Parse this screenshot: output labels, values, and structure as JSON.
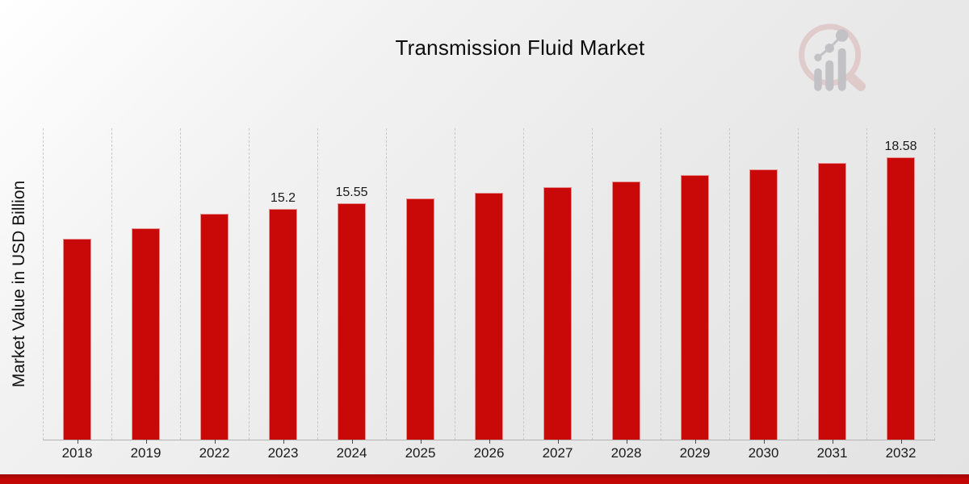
{
  "page": {
    "title": "Transmission Fluid Market"
  },
  "colors": {
    "bar": "#c90808",
    "footer_strip": "#c00606",
    "gridline": "#c9c9c9",
    "axis_line": "#b3b3b3",
    "text": "#1a1a1a",
    "watermark_ring": "#d8aeae",
    "watermark_gray": "#9d9da4"
  },
  "watermark": {
    "name": "magnifier-bar-chart-logo"
  },
  "chart_data": {
    "type": "bar",
    "title": "Transmission Fluid Market",
    "xlabel": "",
    "ylabel": "Market Value in USD Billion",
    "categories": [
      "2018",
      "2019",
      "2022",
      "2023",
      "2024",
      "2025",
      "2026",
      "2027",
      "2028",
      "2029",
      "2030",
      "2031",
      "2032"
    ],
    "values": [
      13.25,
      13.9,
      14.85,
      15.2,
      15.55,
      15.9,
      16.25,
      16.62,
      17.0,
      17.4,
      17.78,
      18.2,
      18.58
    ],
    "value_labels": [
      null,
      null,
      null,
      "15.2",
      "15.55",
      null,
      null,
      null,
      null,
      null,
      null,
      null,
      "18.58"
    ],
    "unit": "USD Billion",
    "ylim": [
      0,
      20.5
    ],
    "grid": "vertical-dashed",
    "legend": "none",
    "bar_color": "#c90808"
  }
}
